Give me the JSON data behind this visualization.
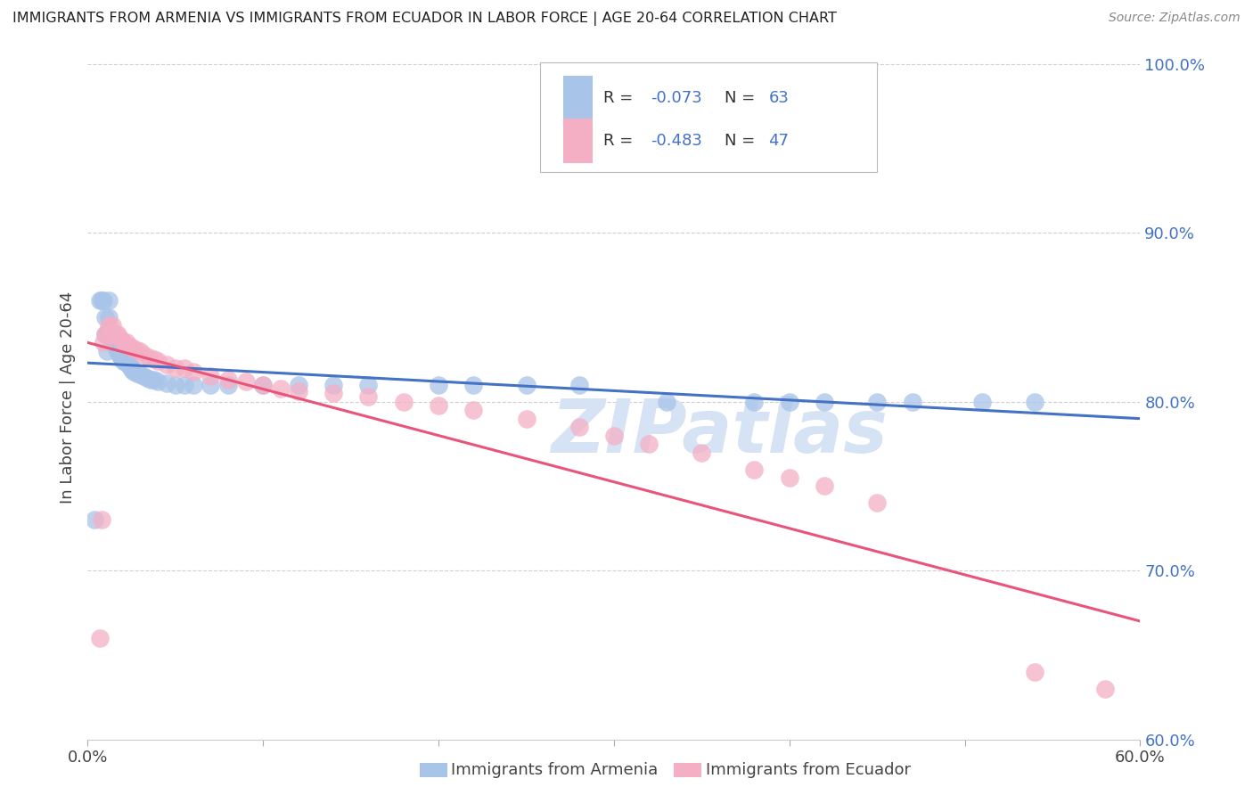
{
  "title": "IMMIGRANTS FROM ARMENIA VS IMMIGRANTS FROM ECUADOR IN LABOR FORCE | AGE 20-64 CORRELATION CHART",
  "source": "Source: ZipAtlas.com",
  "ylabel": "In Labor Force | Age 20-64",
  "xlim": [
    0.0,
    0.6
  ],
  "ylim": [
    0.6,
    1.005
  ],
  "yticks": [
    0.6,
    0.7,
    0.8,
    0.9,
    1.0
  ],
  "ytick_labels": [
    "60.0%",
    "70.0%",
    "80.0%",
    "90.0%",
    "100.0%"
  ],
  "xticks": [
    0.0,
    0.1,
    0.2,
    0.3,
    0.4,
    0.5,
    0.6
  ],
  "xtick_labels": [
    "0.0%",
    "",
    "",
    "",
    "",
    "",
    "60.0%"
  ],
  "armenia_R": -0.073,
  "armenia_N": 63,
  "ecuador_R": -0.483,
  "ecuador_N": 47,
  "armenia_color": "#a8c4e8",
  "ecuador_color": "#f4afc5",
  "armenia_line_color": "#4472c4",
  "ecuador_line_color": "#e8547a",
  "watermark": "ZIPatlas",
  "watermark_color": "#d5e3f5",
  "legend_text_color": "#4472c4",
  "tick_color": "#4472c4",
  "grid_color": "#d0d0d0",
  "armenia_scatter_x": [
    0.004,
    0.007,
    0.008,
    0.009,
    0.01,
    0.01,
    0.011,
    0.011,
    0.012,
    0.012,
    0.013,
    0.013,
    0.014,
    0.014,
    0.015,
    0.015,
    0.016,
    0.016,
    0.017,
    0.017,
    0.018,
    0.018,
    0.019,
    0.019,
    0.02,
    0.02,
    0.021,
    0.022,
    0.023,
    0.024,
    0.025,
    0.025,
    0.026,
    0.027,
    0.028,
    0.03,
    0.032,
    0.034,
    0.036,
    0.038,
    0.04,
    0.045,
    0.05,
    0.055,
    0.06,
    0.07,
    0.08,
    0.1,
    0.12,
    0.14,
    0.16,
    0.2,
    0.22,
    0.25,
    0.28,
    0.33,
    0.38,
    0.4,
    0.42,
    0.45,
    0.47,
    0.51,
    0.54
  ],
  "armenia_scatter_y": [
    0.73,
    0.86,
    0.86,
    0.86,
    0.85,
    0.84,
    0.84,
    0.83,
    0.86,
    0.85,
    0.84,
    0.84,
    0.838,
    0.837,
    0.836,
    0.835,
    0.833,
    0.832,
    0.831,
    0.83,
    0.83,
    0.828,
    0.827,
    0.826,
    0.825,
    0.824,
    0.824,
    0.823,
    0.822,
    0.821,
    0.82,
    0.819,
    0.818,
    0.818,
    0.817,
    0.816,
    0.815,
    0.814,
    0.813,
    0.813,
    0.812,
    0.811,
    0.81,
    0.81,
    0.81,
    0.81,
    0.81,
    0.81,
    0.81,
    0.81,
    0.81,
    0.81,
    0.81,
    0.81,
    0.81,
    0.8,
    0.8,
    0.8,
    0.8,
    0.8,
    0.8,
    0.8,
    0.8
  ],
  "ecuador_scatter_x": [
    0.007,
    0.008,
    0.009,
    0.01,
    0.012,
    0.013,
    0.014,
    0.015,
    0.016,
    0.017,
    0.018,
    0.02,
    0.022,
    0.023,
    0.025,
    0.027,
    0.03,
    0.032,
    0.035,
    0.038,
    0.04,
    0.045,
    0.05,
    0.055,
    0.06,
    0.07,
    0.08,
    0.09,
    0.1,
    0.11,
    0.12,
    0.14,
    0.16,
    0.18,
    0.2,
    0.22,
    0.25,
    0.28,
    0.3,
    0.32,
    0.35,
    0.38,
    0.4,
    0.42,
    0.45,
    0.54,
    0.58
  ],
  "ecuador_scatter_y": [
    0.66,
    0.73,
    0.835,
    0.84,
    0.845,
    0.84,
    0.845,
    0.84,
    0.84,
    0.84,
    0.838,
    0.836,
    0.835,
    0.833,
    0.832,
    0.831,
    0.83,
    0.828,
    0.826,
    0.825,
    0.824,
    0.822,
    0.82,
    0.82,
    0.818,
    0.815,
    0.813,
    0.812,
    0.81,
    0.808,
    0.806,
    0.805,
    0.803,
    0.8,
    0.798,
    0.795,
    0.79,
    0.785,
    0.78,
    0.775,
    0.77,
    0.76,
    0.755,
    0.75,
    0.74,
    0.64,
    0.63
  ],
  "armenia_line_x0": 0.0,
  "armenia_line_x1": 0.6,
  "armenia_line_y0": 0.823,
  "armenia_line_y1": 0.79,
  "ecuador_line_x0": 0.0,
  "ecuador_line_x1": 0.6,
  "ecuador_line_y0": 0.835,
  "ecuador_line_y1": 0.67
}
